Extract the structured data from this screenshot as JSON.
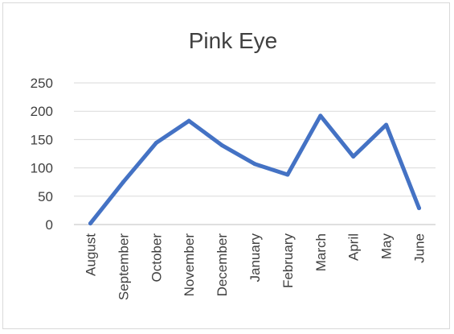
{
  "chart_data": {
    "type": "line",
    "title": "Pink Eye",
    "xlabel": "",
    "ylabel": "",
    "categories": [
      "August",
      "September",
      "October",
      "November",
      "December",
      "January",
      "February",
      "March",
      "April",
      "May",
      "June"
    ],
    "series": [
      {
        "values": [
          2,
          75,
          144,
          183,
          140,
          107,
          88,
          192,
          120,
          176,
          29
        ]
      }
    ],
    "yticks": [
      0,
      50,
      100,
      150,
      200,
      250
    ],
    "ylim": [
      0,
      250
    ],
    "grid": true,
    "legend": "none",
    "colors": {
      "series": "#4472c4",
      "grid": "#d9d9d9",
      "text": "#404040"
    }
  }
}
